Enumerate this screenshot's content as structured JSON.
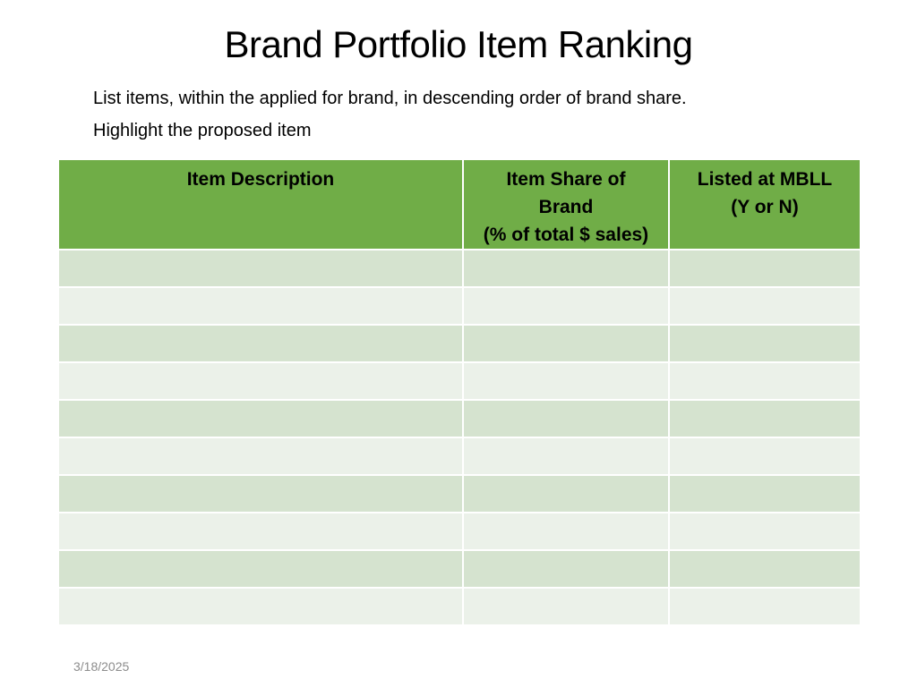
{
  "slide": {
    "title": "Brand Portfolio Item Ranking",
    "instructions": [
      "List items, within the applied for brand, in descending order of brand share.",
      "Highlight the proposed item"
    ],
    "date": "3/18/2025"
  },
  "table": {
    "columns": [
      {
        "label": "Item Description"
      },
      {
        "label": "Item Share of\nBrand\n(% of total $ sales)"
      },
      {
        "label": "Listed at MBLL\n(Y or N)"
      }
    ],
    "rows": [
      [
        "",
        "",
        ""
      ],
      [
        "",
        "",
        ""
      ],
      [
        "",
        "",
        ""
      ],
      [
        "",
        "",
        ""
      ],
      [
        "",
        "",
        ""
      ],
      [
        "",
        "",
        ""
      ],
      [
        "",
        "",
        ""
      ],
      [
        "",
        "",
        ""
      ],
      [
        "",
        "",
        ""
      ],
      [
        "",
        "",
        ""
      ]
    ]
  },
  "colors": {
    "header_bg": "#70ad47",
    "row_dark": "#d5e3cf",
    "row_light": "#ebf1e9",
    "date_text": "#8c8c8c"
  }
}
